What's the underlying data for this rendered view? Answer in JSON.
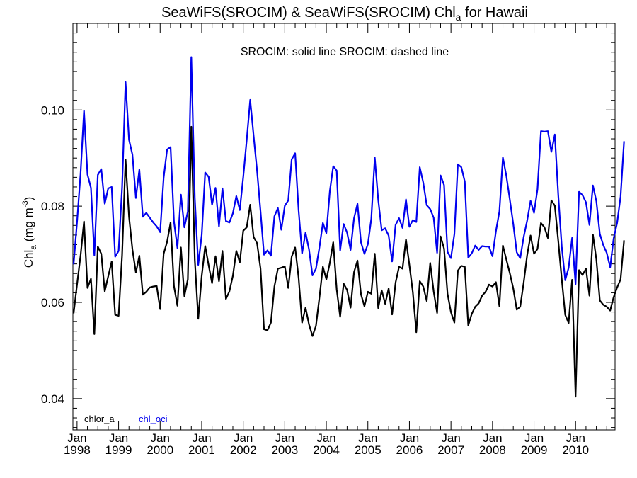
{
  "chart_data": {
    "type": "line",
    "title": "SeaWiFS(SROCIM) & SeaWiFS(SROCIM)  Chl",
    "title_subscript": "a",
    "title_suffix": " for Hawaii",
    "annotation": "SROCIM: solid line   SROCIM: dashed line",
    "ylabel": "Chl",
    "ylabel_subscript": "a",
    "ylabel_units": " (mg m",
    "ylabel_units_sup": "-3",
    "ylabel_units_end": ")",
    "ylim": [
      0.0335,
      0.118
    ],
    "yticks": [
      0.04,
      0.06,
      0.08,
      0.1
    ],
    "ytick_labels": [
      "0.04",
      "0.06",
      "0.08",
      "0.10"
    ],
    "xlim": [
      1997.9,
      2010.95
    ],
    "xticks": [
      1998.0,
      1999.0,
      2000.0,
      2001.0,
      2002.0,
      2003.0,
      2004.0,
      2005.0,
      2006.0,
      2007.0,
      2008.0,
      2009.0,
      2010.0
    ],
    "xtick_month": "Jan",
    "xtick_years": [
      "1998",
      "1999",
      "2000",
      "2001",
      "2002",
      "2003",
      "2004",
      "2005",
      "2006",
      "2007",
      "2008",
      "2009",
      "2010"
    ],
    "legend_placement": "bottom-left",
    "series": [
      {
        "name": "chlor_a",
        "color": "#000000",
        "start_year": 1997.917,
        "step": 0.08333,
        "values": [
          0.0577,
          0.0638,
          0.0697,
          0.0768,
          0.063,
          0.0649,
          0.0534,
          0.0716,
          0.0701,
          0.0623,
          0.0654,
          0.0685,
          0.0574,
          0.0572,
          0.0698,
          0.0897,
          0.0778,
          0.071,
          0.0662,
          0.0697,
          0.0616,
          0.0622,
          0.0631,
          0.0633,
          0.0634,
          0.0586,
          0.0701,
          0.0726,
          0.0766,
          0.0634,
          0.0593,
          0.0714,
          0.0613,
          0.0648,
          0.0965,
          0.0689,
          0.0566,
          0.0655,
          0.0717,
          0.0677,
          0.064,
          0.0696,
          0.0644,
          0.0707,
          0.0607,
          0.0623,
          0.0655,
          0.0707,
          0.0683,
          0.0749,
          0.0756,
          0.0803,
          0.0736,
          0.0723,
          0.067,
          0.0544,
          0.0542,
          0.0558,
          0.0633,
          0.067,
          0.0672,
          0.0675,
          0.063,
          0.0695,
          0.0714,
          0.0651,
          0.0558,
          0.0589,
          0.0554,
          0.053,
          0.0551,
          0.061,
          0.0674,
          0.0648,
          0.0682,
          0.0725,
          0.0627,
          0.057,
          0.0639,
          0.0626,
          0.0589,
          0.0663,
          0.0687,
          0.0617,
          0.0592,
          0.0622,
          0.0618,
          0.0701,
          0.0588,
          0.0625,
          0.0597,
          0.0629,
          0.0575,
          0.0641,
          0.0674,
          0.067,
          0.0731,
          0.0678,
          0.0621,
          0.0538,
          0.0644,
          0.0633,
          0.0603,
          0.0682,
          0.0623,
          0.0578,
          0.0737,
          0.0712,
          0.0618,
          0.058,
          0.0558,
          0.0666,
          0.0676,
          0.0674,
          0.0552,
          0.0576,
          0.0591,
          0.0598,
          0.0614,
          0.0622,
          0.0637,
          0.0633,
          0.0642,
          0.0592,
          0.0718,
          0.0689,
          0.0661,
          0.0629,
          0.0585,
          0.0591,
          0.0641,
          0.0698,
          0.0739,
          0.0701,
          0.0711,
          0.0765,
          0.0756,
          0.0734,
          0.0812,
          0.0801,
          0.0727,
          0.0648,
          0.0574,
          0.0557,
          0.0647,
          0.0404,
          0.0667,
          0.0657,
          0.067,
          0.0614,
          0.0741,
          0.0689,
          0.0604,
          0.0595,
          0.0591,
          0.0583,
          0.0611,
          0.0631,
          0.0648,
          0.0729
        ]
      },
      {
        "name": "chl_oci",
        "color": "#0000ee",
        "start_year": 1997.917,
        "step": 0.08333,
        "values": [
          0.0679,
          0.0768,
          0.0867,
          0.0998,
          0.0866,
          0.0838,
          0.0698,
          0.0865,
          0.0877,
          0.0805,
          0.0837,
          0.084,
          0.0695,
          0.0707,
          0.0839,
          0.1058,
          0.0938,
          0.0907,
          0.0817,
          0.0876,
          0.0778,
          0.0786,
          0.0776,
          0.0766,
          0.0758,
          0.0746,
          0.0859,
          0.0918,
          0.0923,
          0.0768,
          0.0713,
          0.0824,
          0.0756,
          0.0789,
          0.111,
          0.0818,
          0.0678,
          0.074,
          0.087,
          0.0861,
          0.0803,
          0.0838,
          0.0758,
          0.0837,
          0.0769,
          0.0766,
          0.0785,
          0.0821,
          0.0792,
          0.0861,
          0.0938,
          0.1021,
          0.0947,
          0.0874,
          0.0789,
          0.0699,
          0.0708,
          0.0697,
          0.0779,
          0.0796,
          0.0751,
          0.0801,
          0.0812,
          0.0897,
          0.091,
          0.0791,
          0.0702,
          0.0745,
          0.071,
          0.0656,
          0.067,
          0.0714,
          0.0765,
          0.0744,
          0.0831,
          0.0883,
          0.0874,
          0.0708,
          0.0763,
          0.0745,
          0.0709,
          0.0775,
          0.0805,
          0.0725,
          0.0701,
          0.0721,
          0.0774,
          0.0901,
          0.0813,
          0.075,
          0.0754,
          0.0739,
          0.0685,
          0.0761,
          0.0775,
          0.0755,
          0.0814,
          0.0757,
          0.0771,
          0.0767,
          0.0881,
          0.0849,
          0.0802,
          0.0794,
          0.0776,
          0.0703,
          0.0864,
          0.0844,
          0.0705,
          0.0692,
          0.0742,
          0.0887,
          0.0881,
          0.0851,
          0.0693,
          0.0702,
          0.0718,
          0.0709,
          0.0717,
          0.0716,
          0.0716,
          0.0696,
          0.0748,
          0.0789,
          0.0901,
          0.0863,
          0.0814,
          0.0763,
          0.0704,
          0.0692,
          0.0736,
          0.077,
          0.0811,
          0.0786,
          0.0835,
          0.0956,
          0.0955,
          0.0956,
          0.0913,
          0.0949,
          0.0822,
          0.0716,
          0.0646,
          0.0672,
          0.0734,
          0.0638,
          0.083,
          0.0823,
          0.0808,
          0.0761,
          0.0843,
          0.081,
          0.0742,
          0.0719,
          0.0703,
          0.0673,
          0.0733,
          0.0765,
          0.082,
          0.0935
        ]
      }
    ]
  }
}
